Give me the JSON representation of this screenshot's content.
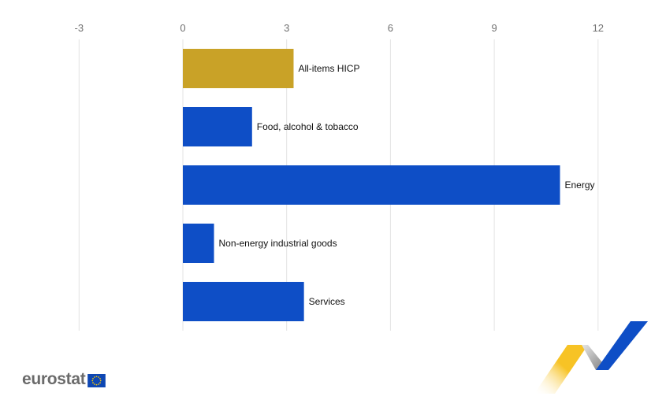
{
  "chart_data": {
    "type": "bar",
    "orientation": "horizontal",
    "categories": [
      "All-items HICP",
      "Food, alcohol & tobacco",
      "Energy",
      "Non-energy industrial goods",
      "Services"
    ],
    "values": [
      3.2,
      2.0,
      10.9,
      0.9,
      3.5
    ],
    "colors": [
      "#c9a227",
      "#0e4ec6",
      "#0e4ec6",
      "#0e4ec6",
      "#0e4ec6"
    ],
    "xlim": [
      -3,
      13.5
    ],
    "xticks": [
      -3,
      0,
      3,
      6,
      9,
      12
    ],
    "x_axis_position": "top",
    "grid": true,
    "title": "",
    "xlabel": "",
    "ylabel": ""
  },
  "branding": {
    "logo_text": "eurostat",
    "flag_icon": "eu-flag-icon",
    "decoration_icon": "eurostat-ribbon-icon",
    "colors": {
      "ribbon_yellow": "#f7c325",
      "ribbon_grey": "#8a8a8a",
      "ribbon_blue": "#0e4ec6"
    }
  }
}
